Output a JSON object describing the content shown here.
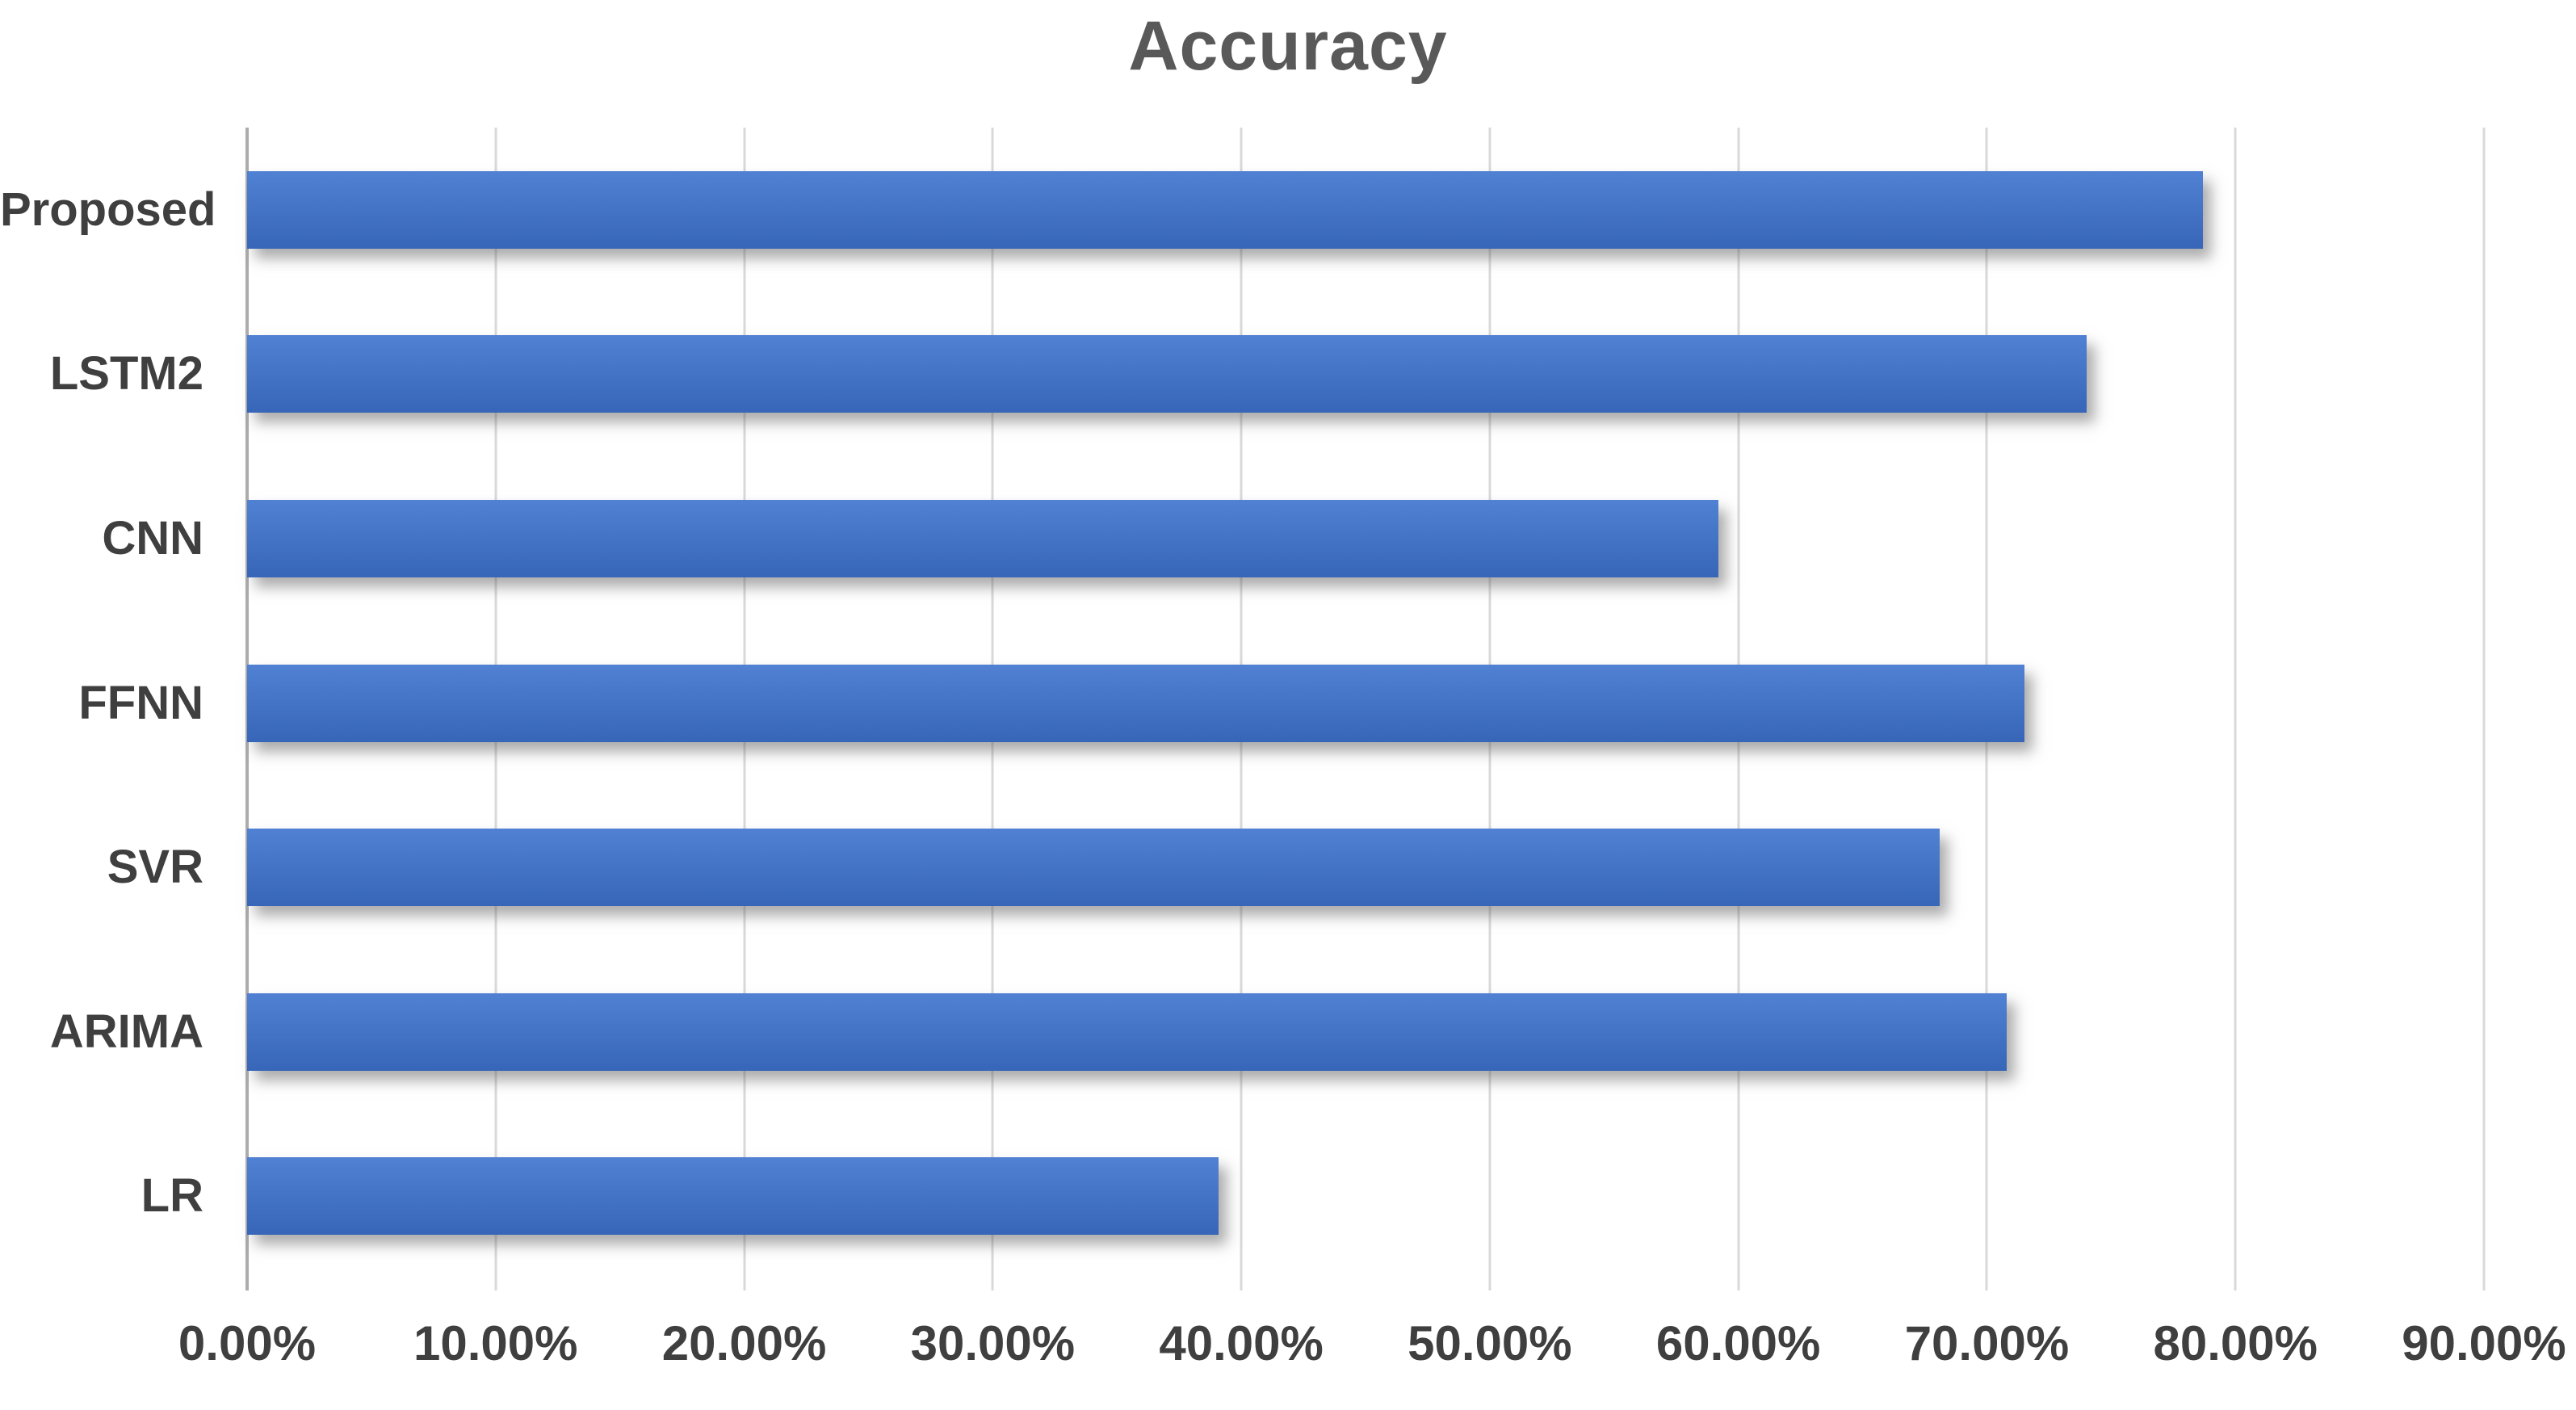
{
  "chart_data": {
    "type": "bar",
    "orientation": "horizontal",
    "title": "Accuracy",
    "categories": [
      "Proposed",
      "LSTM2",
      "CNN",
      "FFNN",
      "SVR",
      "ARIMA",
      "LR"
    ],
    "values": [
      78.7,
      74.0,
      59.2,
      71.5,
      68.1,
      70.8,
      39.1
    ],
    "value_unit": "%",
    "x_tick_labels": [
      "0.00%",
      "10.00%",
      "20.00%",
      "30.00%",
      "40.00%",
      "50.00%",
      "60.00%",
      "70.00%",
      "80.00%",
      "90.00%"
    ],
    "xlim": [
      0,
      90
    ],
    "grid": true,
    "legend": "none",
    "colors": {
      "bar_gradient_top": "#5181D2",
      "bar_gradient_bottom": "#3766B8",
      "grid_color": "#D9D9D9",
      "axis_line_color": "#ACACAC",
      "label_color": "#3F3F3F",
      "title_color": "#595959"
    }
  }
}
